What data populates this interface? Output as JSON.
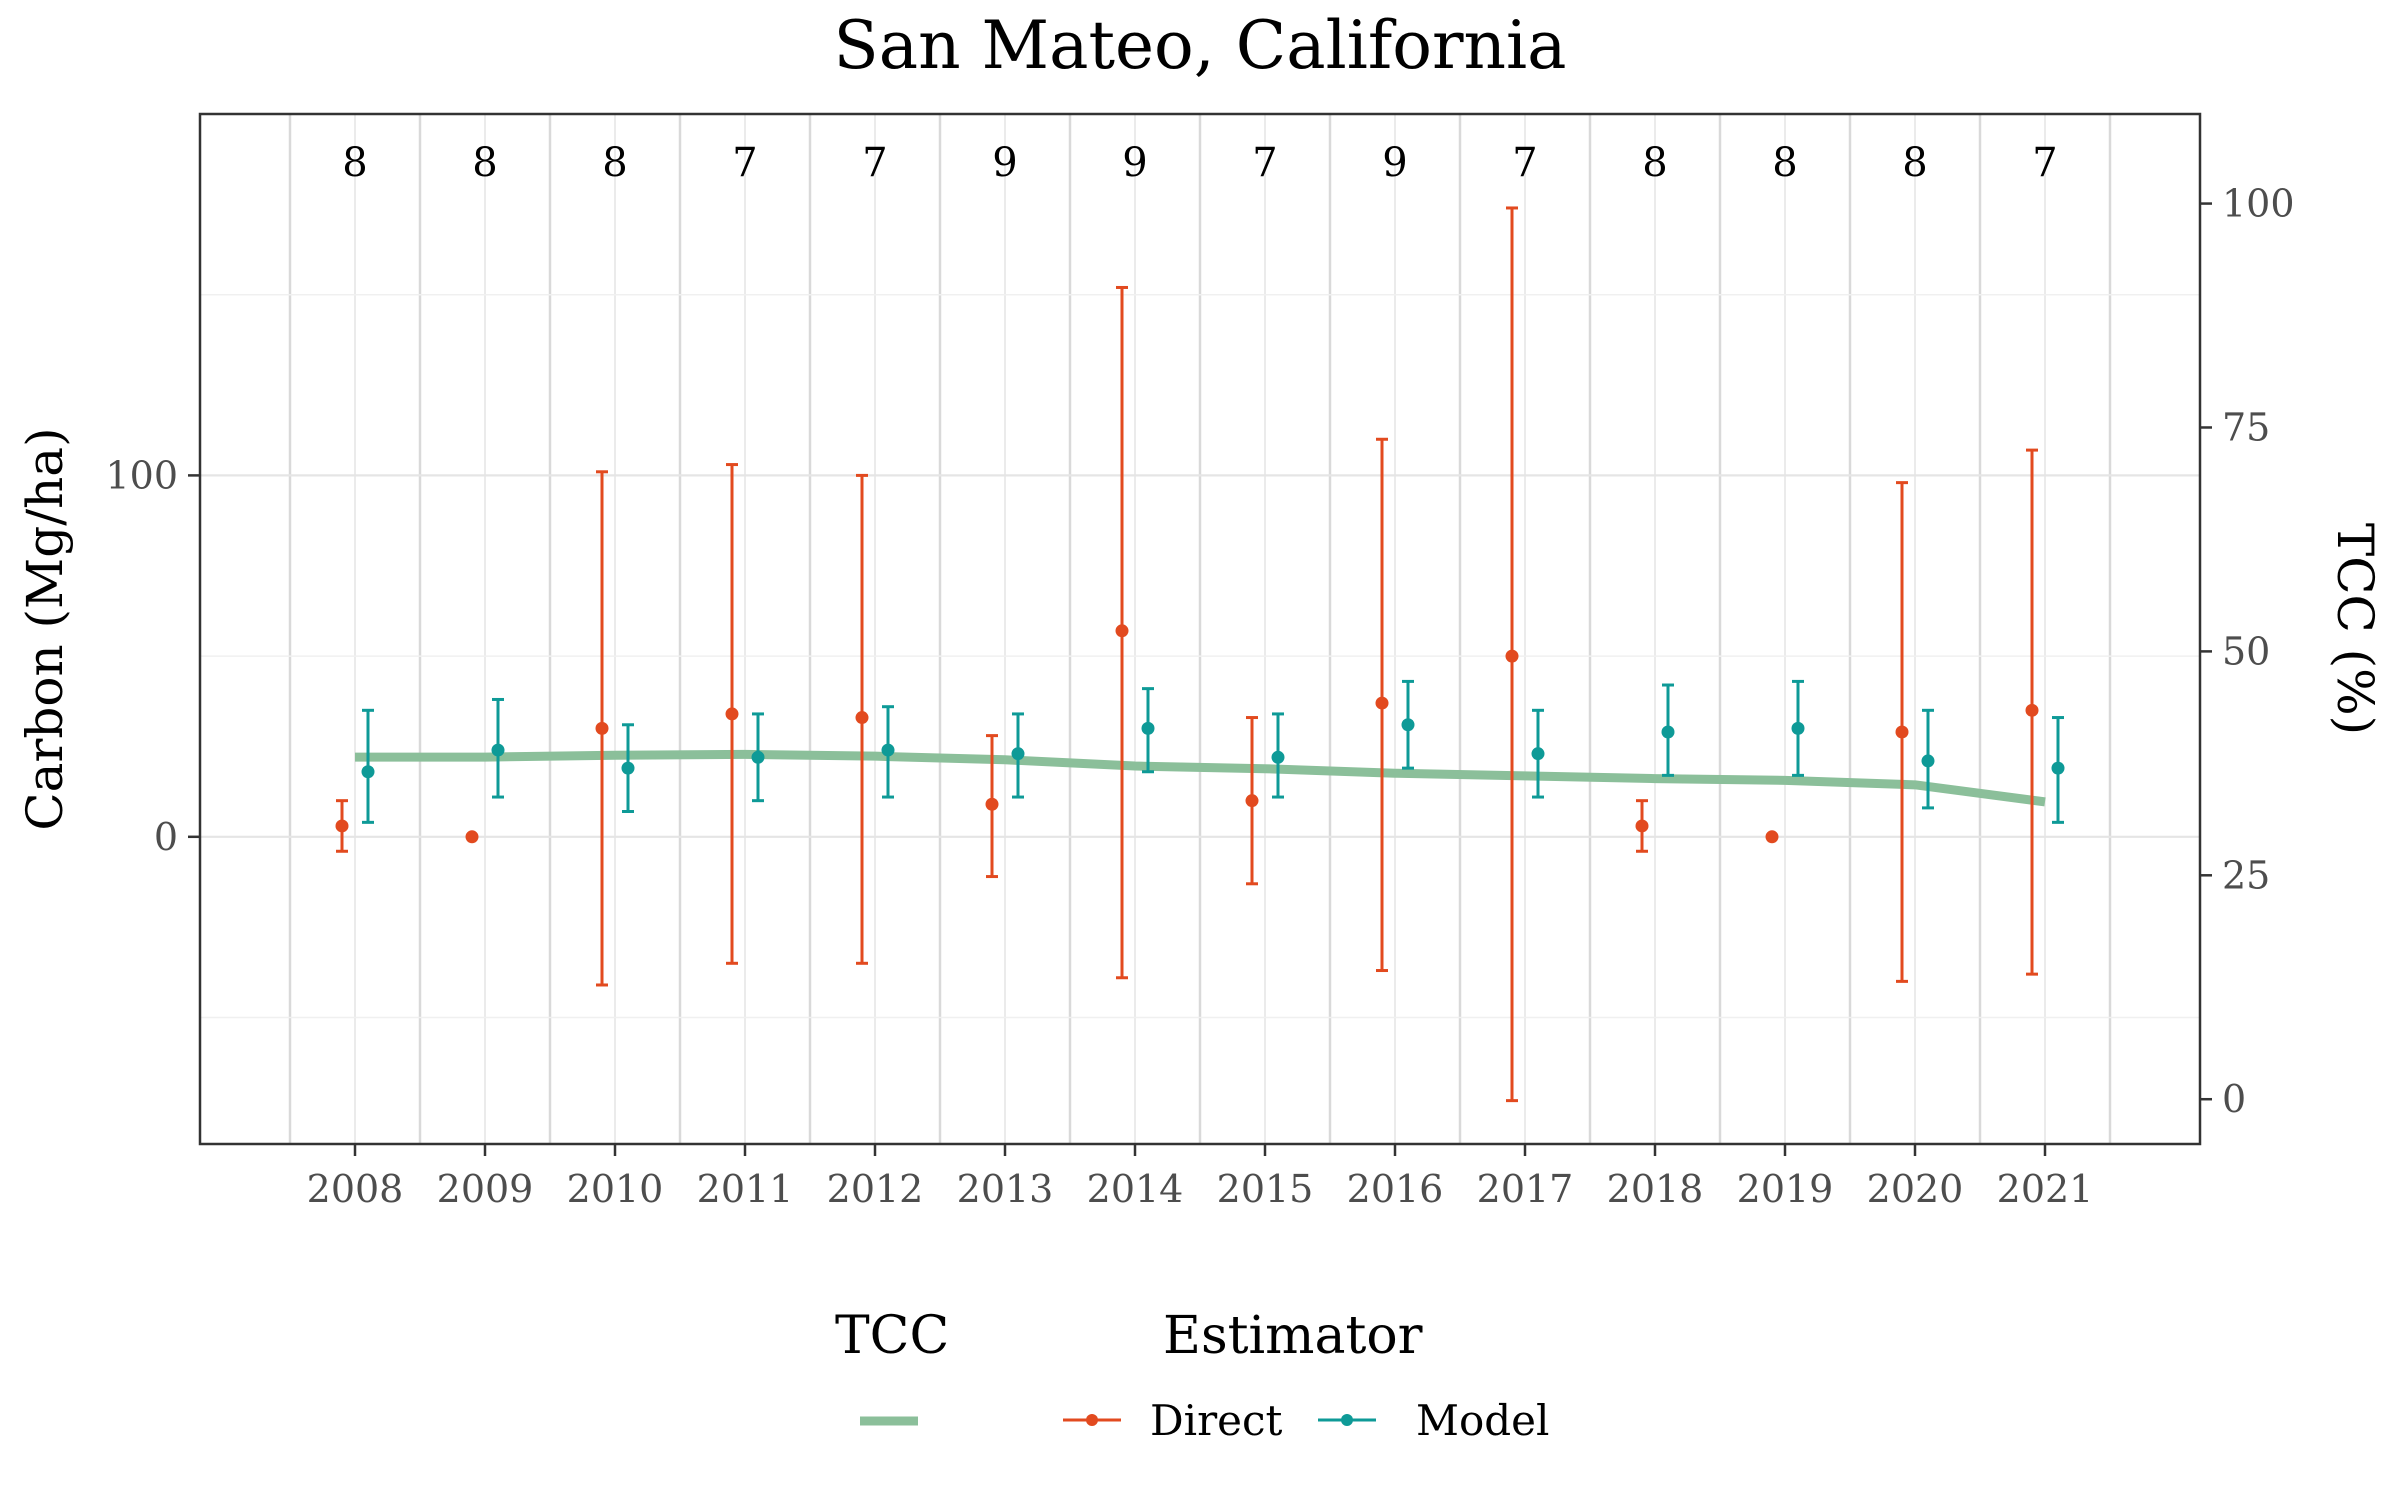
{
  "chart_data": {
    "type": "line",
    "title": "San Mateo, California",
    "xlabel": "",
    "ylabel": "Carbon (Mg/ha)",
    "y2label": "TCC (%)",
    "ylim": [
      -85,
      200
    ],
    "y2lim": [
      -5,
      110
    ],
    "x": [
      2008,
      2009,
      2010,
      2011,
      2012,
      2013,
      2014,
      2015,
      2016,
      2017,
      2018,
      2019,
      2020,
      2021
    ],
    "y_ticks": [
      0,
      100
    ],
    "y2_ticks": [
      0,
      25,
      50,
      75,
      100
    ],
    "counts": [
      8,
      8,
      8,
      7,
      7,
      9,
      9,
      7,
      9,
      7,
      8,
      8,
      8,
      7
    ],
    "grid": true,
    "legend_position": "bottom",
    "legend": {
      "tcc_title": "TCC",
      "estimator_title": "Estimator"
    },
    "series": [
      {
        "name": "Direct",
        "color": "#E24A1F",
        "values": [
          3,
          0,
          30,
          34,
          33,
          9,
          57,
          10,
          37,
          50,
          3,
          0,
          29,
          35
        ],
        "lower": [
          -4,
          0,
          -41,
          -35,
          -35,
          -11,
          -39,
          -13,
          -37,
          -73,
          -4,
          0,
          -40,
          -38
        ],
        "upper": [
          10,
          0,
          101,
          103,
          100,
          28,
          152,
          33,
          110,
          174,
          10,
          0,
          98,
          107
        ]
      },
      {
        "name": "Model",
        "color": "#0E9A97",
        "values": [
          18,
          24,
          19,
          22,
          24,
          23,
          30,
          22,
          31,
          23,
          29,
          30,
          21,
          19
        ],
        "lower": [
          4,
          11,
          7,
          10,
          11,
          11,
          18,
          11,
          19,
          11,
          17,
          17,
          8,
          4
        ],
        "upper": [
          35,
          38,
          31,
          34,
          36,
          34,
          41,
          34,
          43,
          35,
          42,
          43,
          35,
          33
        ]
      }
    ],
    "tcc": {
      "color": "#8BBF9A",
      "values": [
        38.2,
        38.2,
        38.4,
        38.5,
        38.3,
        37.9,
        37.2,
        36.9,
        36.4,
        36.1,
        35.8,
        35.6,
        35.1,
        33.2
      ]
    }
  }
}
